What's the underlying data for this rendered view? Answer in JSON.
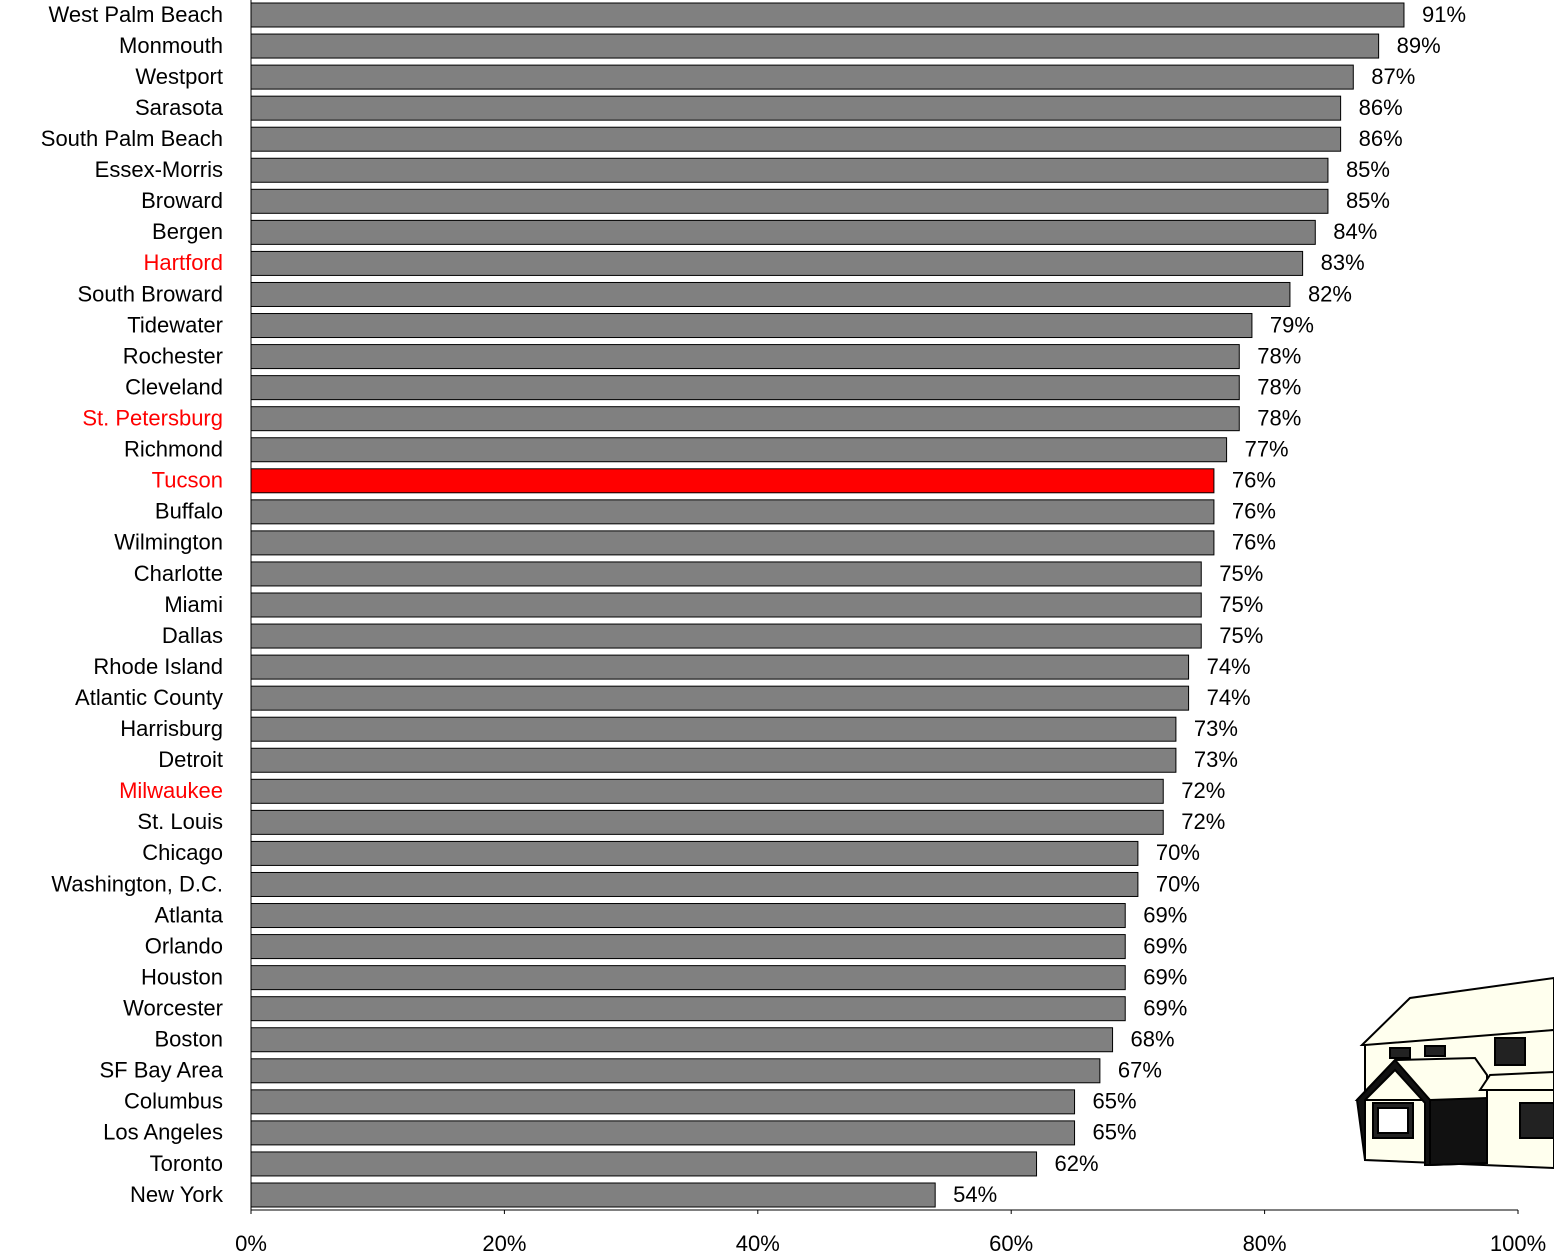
{
  "chart_data": {
    "type": "bar",
    "orientation": "horizontal",
    "categories": [
      "West Palm Beach",
      "Monmouth",
      "Westport",
      "Sarasota",
      "South Palm Beach",
      "Essex-Morris",
      "Broward",
      "Bergen",
      "Hartford",
      "South Broward",
      "Tidewater",
      "Rochester",
      "Cleveland",
      "St. Petersburg",
      "Richmond",
      "Tucson",
      "Buffalo",
      "Wilmington",
      "Charlotte",
      "Miami",
      "Dallas",
      "Rhode Island",
      "Atlantic County",
      "Harrisburg",
      "Detroit",
      "Milwaukee",
      "St. Louis",
      "Chicago",
      "Washington, D.C.",
      "Atlanta",
      "Orlando",
      "Houston",
      "Worcester",
      "Boston",
      "SF Bay Area",
      "Columbus",
      "Los Angeles",
      "Toronto",
      "New York"
    ],
    "values": [
      91,
      89,
      87,
      86,
      86,
      85,
      85,
      84,
      83,
      82,
      79,
      78,
      78,
      78,
      77,
      76,
      76,
      76,
      75,
      75,
      75,
      74,
      74,
      73,
      73,
      72,
      72,
      70,
      70,
      69,
      69,
      69,
      69,
      68,
      67,
      65,
      65,
      62,
      54
    ],
    "value_labels": [
      "91%",
      "89%",
      "87%",
      "86%",
      "86%",
      "85%",
      "85%",
      "84%",
      "83%",
      "82%",
      "79%",
      "78%",
      "78%",
      "78%",
      "77%",
      "76%",
      "76%",
      "76%",
      "75%",
      "75%",
      "75%",
      "74%",
      "74%",
      "73%",
      "73%",
      "72%",
      "72%",
      "70%",
      "70%",
      "69%",
      "69%",
      "69%",
      "69%",
      "68%",
      "67%",
      "65%",
      "65%",
      "62%",
      "54%"
    ],
    "color": "#808080",
    "highlight_color": "#ff0000",
    "highlight_bars": [
      "Tucson"
    ],
    "highlight_labels": [
      "Hartford",
      "St. Petersburg",
      "Tucson",
      "Milwaukee"
    ],
    "xlim": [
      0,
      100
    ],
    "xticks": [
      {
        "value": 0,
        "label": "0%"
      },
      {
        "value": 20,
        "label": "20%"
      },
      {
        "value": 40,
        "label": "40%"
      },
      {
        "value": 60,
        "label": "60%"
      },
      {
        "value": 80,
        "label": "80%"
      },
      {
        "value": 100,
        "label": "100%"
      }
    ],
    "grid": false
  }
}
